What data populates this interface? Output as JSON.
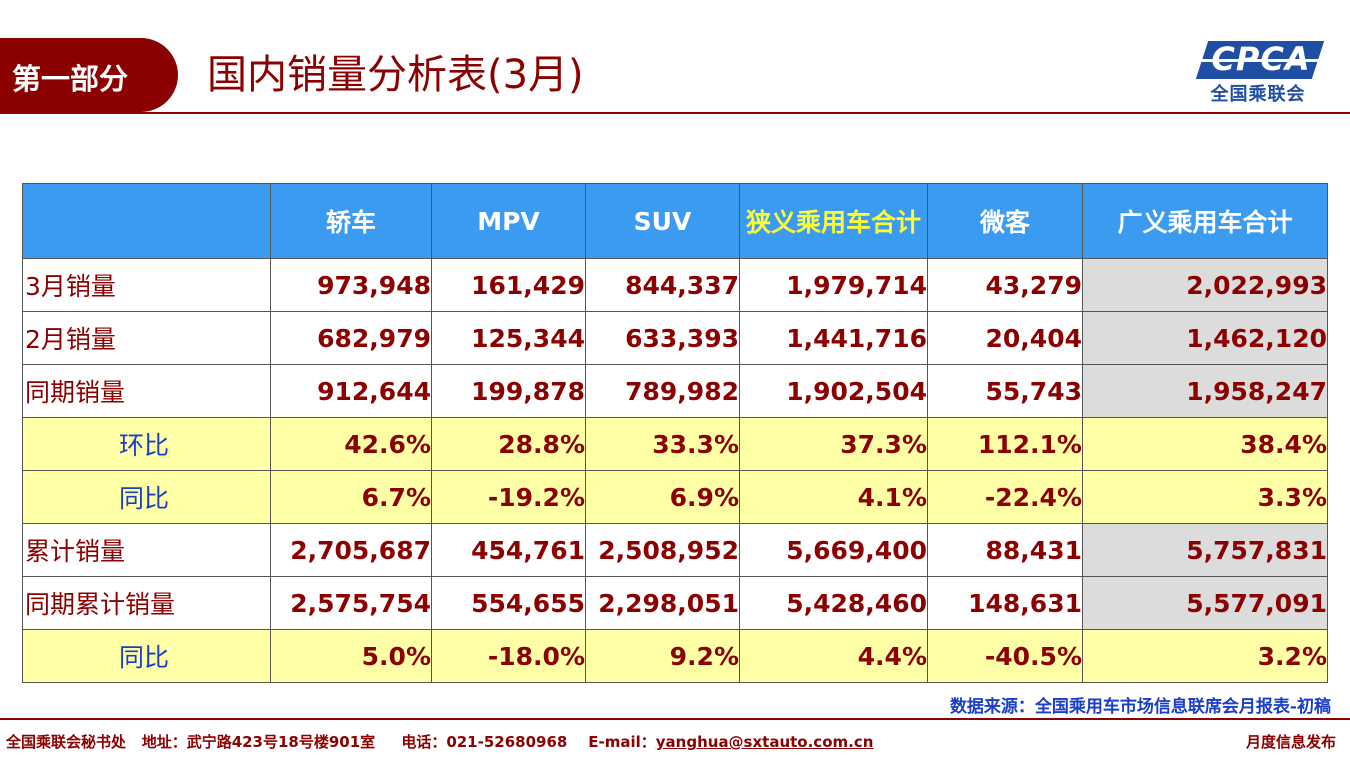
{
  "header": {
    "section_label": "第一部分",
    "title": "国内销量分析表(3月)",
    "logo_text": "CPCA",
    "logo_sub": "全国乘联会"
  },
  "table": {
    "columns": [
      "",
      "轿车",
      "MPV",
      "SUV",
      "狭义乘用车合计",
      "微客",
      "广义乘用车合计"
    ],
    "rows": [
      {
        "label": "3月销量",
        "values": [
          "973,948",
          "161,429",
          "844,337",
          "1,979,714",
          "43,279",
          "2,022,993"
        ]
      },
      {
        "label": "2月销量",
        "values": [
          "682,979",
          "125,344",
          "633,393",
          "1,441,716",
          "20,404",
          "1,462,120"
        ]
      },
      {
        "label": "同期销量",
        "values": [
          "912,644",
          "199,878",
          "789,982",
          "1,902,504",
          "55,743",
          "1,958,247"
        ]
      },
      {
        "label": "环比",
        "values": [
          "42.6%",
          "28.8%",
          "33.3%",
          "37.3%",
          "112.1%",
          "38.4%"
        ]
      },
      {
        "label": "同比",
        "values": [
          "6.7%",
          "-19.2%",
          "6.9%",
          "4.1%",
          "-22.4%",
          "3.3%"
        ]
      },
      {
        "label": "累计销量",
        "values": [
          "2,705,687",
          "454,761",
          "2,508,952",
          "5,669,400",
          "88,431",
          "5,757,831"
        ]
      },
      {
        "label": "同期累计销量",
        "values": [
          "2,575,754",
          "554,655",
          "2,298,051",
          "5,428,460",
          "148,631",
          "5,577,091"
        ]
      },
      {
        "label": "同比",
        "values": [
          "5.0%",
          "-18.0%",
          "9.2%",
          "4.4%",
          "-40.5%",
          "3.2%"
        ]
      }
    ]
  },
  "source_note": "数据来源：全国乘用车市场信息联席会月报表-初稿",
  "footer": {
    "org": "全国乘联会秘书处",
    "address": "地址：武宁路423号18号楼901室",
    "phone": "电话：021-52680968",
    "email_label": "E-mail：",
    "email": "yanghua@sxtauto.com.cn",
    "right_text": "月度信息发布"
  },
  "colors": {
    "brand_red": "#8b0000",
    "header_blue": "#3b9bf0",
    "highlight_yellow": "#ffff33",
    "ratio_row_bg": "#ffffa6",
    "total_col_bg": "#dcdcdc",
    "label_blue": "#1a3ec8"
  }
}
